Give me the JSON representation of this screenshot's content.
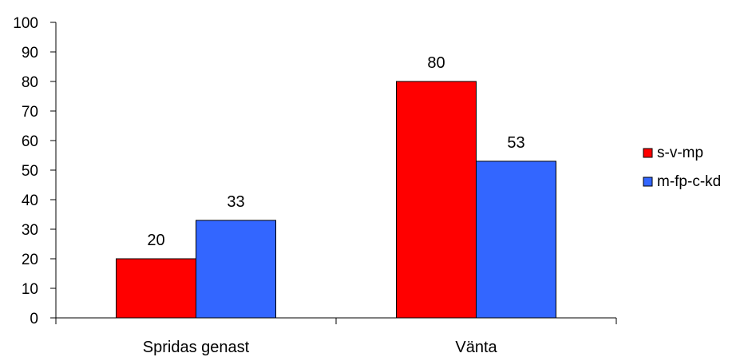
{
  "chart_data": {
    "type": "bar",
    "categories": [
      "Spridas genast",
      "Vänta"
    ],
    "series": [
      {
        "name": "s-v-mp",
        "color": "#ff0000",
        "values": [
          20,
          80
        ]
      },
      {
        "name": "m-fp-c-kd",
        "color": "#3366ff",
        "values": [
          33,
          53
        ]
      }
    ],
    "ylim": [
      0,
      100
    ],
    "yticks": [
      0,
      10,
      20,
      30,
      40,
      50,
      60,
      70,
      80,
      90,
      100
    ],
    "grid": false,
    "legend": "right"
  }
}
